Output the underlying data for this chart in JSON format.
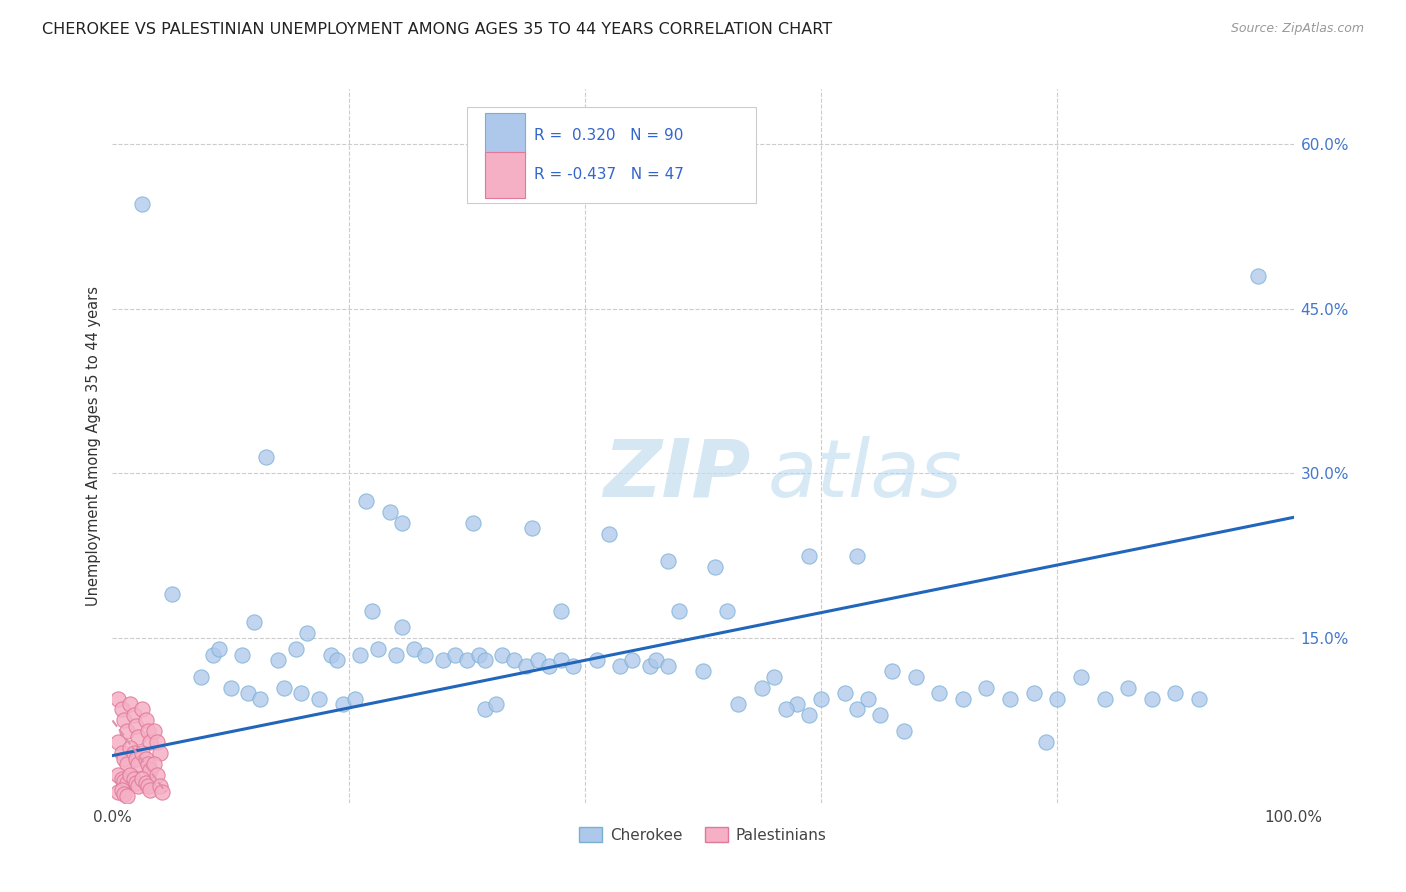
{
  "title": "CHEROKEE VS PALESTINIAN UNEMPLOYMENT AMONG AGES 35 TO 44 YEARS CORRELATION CHART",
  "source": "Source: ZipAtlas.com",
  "ylabel": "Unemployment Among Ages 35 to 44 years",
  "xlim": [
    0,
    1.0
  ],
  "ylim": [
    0,
    0.65
  ],
  "watermark_zip": "ZIP",
  "watermark_atlas": "atlas",
  "cherokee_color": "#adc8eb",
  "cherokee_edge": "#7aafd4",
  "palestinian_color": "#f5b0c5",
  "palestinian_edge": "#e07898",
  "cherokee_line_color": "#2266bb",
  "palestinian_line_color": "#e090a8",
  "cherokee_scatter": [
    [
      0.025,
      0.545
    ],
    [
      0.97,
      0.48
    ],
    [
      0.13,
      0.315
    ],
    [
      0.215,
      0.275
    ],
    [
      0.235,
      0.265
    ],
    [
      0.245,
      0.255
    ],
    [
      0.305,
      0.255
    ],
    [
      0.355,
      0.25
    ],
    [
      0.42,
      0.245
    ],
    [
      0.05,
      0.19
    ],
    [
      0.22,
      0.175
    ],
    [
      0.47,
      0.22
    ],
    [
      0.51,
      0.215
    ],
    [
      0.59,
      0.225
    ],
    [
      0.63,
      0.225
    ],
    [
      0.12,
      0.165
    ],
    [
      0.165,
      0.155
    ],
    [
      0.38,
      0.175
    ],
    [
      0.245,
      0.16
    ],
    [
      0.48,
      0.175
    ],
    [
      0.52,
      0.175
    ],
    [
      0.085,
      0.135
    ],
    [
      0.09,
      0.14
    ],
    [
      0.11,
      0.135
    ],
    [
      0.14,
      0.13
    ],
    [
      0.155,
      0.14
    ],
    [
      0.185,
      0.135
    ],
    [
      0.19,
      0.13
    ],
    [
      0.21,
      0.135
    ],
    [
      0.225,
      0.14
    ],
    [
      0.24,
      0.135
    ],
    [
      0.255,
      0.14
    ],
    [
      0.265,
      0.135
    ],
    [
      0.28,
      0.13
    ],
    [
      0.29,
      0.135
    ],
    [
      0.3,
      0.13
    ],
    [
      0.31,
      0.135
    ],
    [
      0.315,
      0.13
    ],
    [
      0.33,
      0.135
    ],
    [
      0.34,
      0.13
    ],
    [
      0.35,
      0.125
    ],
    [
      0.36,
      0.13
    ],
    [
      0.37,
      0.125
    ],
    [
      0.38,
      0.13
    ],
    [
      0.39,
      0.125
    ],
    [
      0.41,
      0.13
    ],
    [
      0.43,
      0.125
    ],
    [
      0.44,
      0.13
    ],
    [
      0.455,
      0.125
    ],
    [
      0.46,
      0.13
    ],
    [
      0.47,
      0.125
    ],
    [
      0.5,
      0.12
    ],
    [
      0.56,
      0.115
    ],
    [
      0.58,
      0.09
    ],
    [
      0.6,
      0.095
    ],
    [
      0.62,
      0.1
    ],
    [
      0.64,
      0.095
    ],
    [
      0.66,
      0.12
    ],
    [
      0.68,
      0.115
    ],
    [
      0.7,
      0.1
    ],
    [
      0.72,
      0.095
    ],
    [
      0.74,
      0.105
    ],
    [
      0.76,
      0.095
    ],
    [
      0.78,
      0.1
    ],
    [
      0.8,
      0.095
    ],
    [
      0.82,
      0.115
    ],
    [
      0.84,
      0.095
    ],
    [
      0.86,
      0.105
    ],
    [
      0.88,
      0.095
    ],
    [
      0.9,
      0.1
    ],
    [
      0.92,
      0.095
    ],
    [
      0.55,
      0.105
    ],
    [
      0.53,
      0.09
    ],
    [
      0.57,
      0.085
    ],
    [
      0.59,
      0.08
    ],
    [
      0.63,
      0.085
    ],
    [
      0.65,
      0.08
    ],
    [
      0.67,
      0.065
    ],
    [
      0.79,
      0.055
    ],
    [
      0.075,
      0.115
    ],
    [
      0.1,
      0.105
    ],
    [
      0.115,
      0.1
    ],
    [
      0.125,
      0.095
    ],
    [
      0.145,
      0.105
    ],
    [
      0.16,
      0.1
    ],
    [
      0.175,
      0.095
    ],
    [
      0.195,
      0.09
    ],
    [
      0.205,
      0.095
    ],
    [
      0.315,
      0.085
    ],
    [
      0.325,
      0.09
    ]
  ],
  "palestinian_scatter": [
    [
      0.005,
      0.095
    ],
    [
      0.008,
      0.085
    ],
    [
      0.01,
      0.075
    ],
    [
      0.012,
      0.065
    ],
    [
      0.015,
      0.09
    ],
    [
      0.018,
      0.08
    ],
    [
      0.02,
      0.07
    ],
    [
      0.022,
      0.06
    ],
    [
      0.025,
      0.085
    ],
    [
      0.028,
      0.075
    ],
    [
      0.03,
      0.065
    ],
    [
      0.032,
      0.055
    ],
    [
      0.005,
      0.055
    ],
    [
      0.008,
      0.045
    ],
    [
      0.01,
      0.04
    ],
    [
      0.012,
      0.035
    ],
    [
      0.015,
      0.05
    ],
    [
      0.018,
      0.045
    ],
    [
      0.02,
      0.04
    ],
    [
      0.022,
      0.035
    ],
    [
      0.025,
      0.045
    ],
    [
      0.028,
      0.04
    ],
    [
      0.03,
      0.035
    ],
    [
      0.032,
      0.03
    ],
    [
      0.005,
      0.025
    ],
    [
      0.008,
      0.022
    ],
    [
      0.01,
      0.02
    ],
    [
      0.012,
      0.018
    ],
    [
      0.015,
      0.025
    ],
    [
      0.018,
      0.022
    ],
    [
      0.02,
      0.018
    ],
    [
      0.022,
      0.015
    ],
    [
      0.025,
      0.022
    ],
    [
      0.028,
      0.018
    ],
    [
      0.03,
      0.015
    ],
    [
      0.032,
      0.012
    ],
    [
      0.005,
      0.01
    ],
    [
      0.008,
      0.012
    ],
    [
      0.01,
      0.008
    ],
    [
      0.012,
      0.006
    ],
    [
      0.035,
      0.065
    ],
    [
      0.038,
      0.055
    ],
    [
      0.04,
      0.045
    ],
    [
      0.035,
      0.035
    ],
    [
      0.038,
      0.025
    ],
    [
      0.04,
      0.015
    ],
    [
      0.042,
      0.01
    ]
  ],
  "cherokee_line": {
    "x0": 0.0,
    "y0": 0.043,
    "x1": 1.0,
    "y1": 0.26
  },
  "palestinian_line": {
    "x0": 0.0,
    "y0": 0.075,
    "x1": 0.045,
    "y1": 0.01
  },
  "background_color": "#ffffff",
  "grid_color": "#cccccc"
}
